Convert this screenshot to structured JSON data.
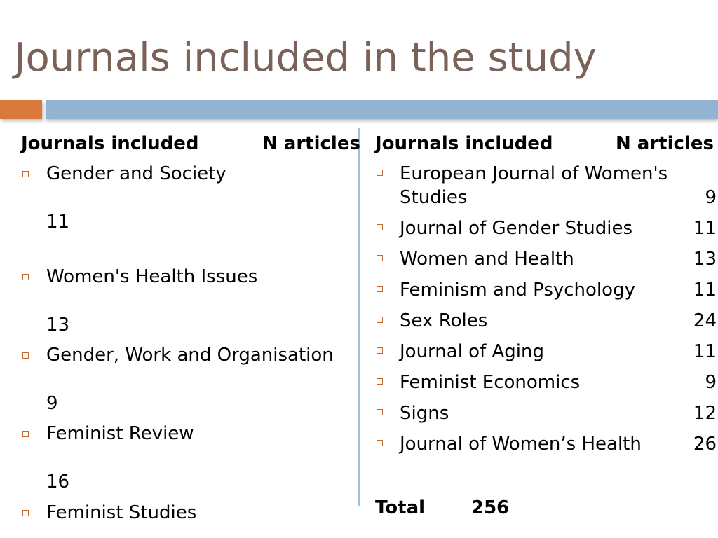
{
  "slide": {
    "title": "Journals included in the study",
    "accent_orange": "#d97a3a",
    "accent_blue": "#93b3d3",
    "title_color": "#7a6258",
    "bullet_color": "#c46a2f"
  },
  "left": {
    "header_journal": "Journals included",
    "header_count": "N articles",
    "items": [
      {
        "name": "Gender and Society",
        "count": "11"
      },
      {
        "name": "Women's Health Issues",
        "count": "13"
      },
      {
        "name": "Gender, Work and Organisation",
        "count": "9"
      },
      {
        "name": "Feminist Review",
        "count": "16"
      },
      {
        "name": "Feminist Studies",
        "count": ""
      }
    ]
  },
  "right": {
    "header_journal": "Journals included",
    "header_count": "N articles",
    "items": [
      {
        "name": "European Journal of Women's",
        "name2": "Studies",
        "count": "9"
      },
      {
        "name": "Journal of Gender Studies",
        "count": "11"
      },
      {
        "name": "Women and Health",
        "count": "13"
      },
      {
        "name": "Feminism and Psychology",
        "count": "11"
      },
      {
        "name": "Sex Roles",
        "count": "24"
      },
      {
        "name": "Journal of Aging",
        "count": "11"
      },
      {
        "name": "Feminist Economics",
        "count": "9"
      },
      {
        "name": "Signs",
        "count": "12"
      },
      {
        "name": "Journal of Women’s Health",
        "count": "26"
      }
    ],
    "total_label": "Total",
    "total_value": "256"
  }
}
